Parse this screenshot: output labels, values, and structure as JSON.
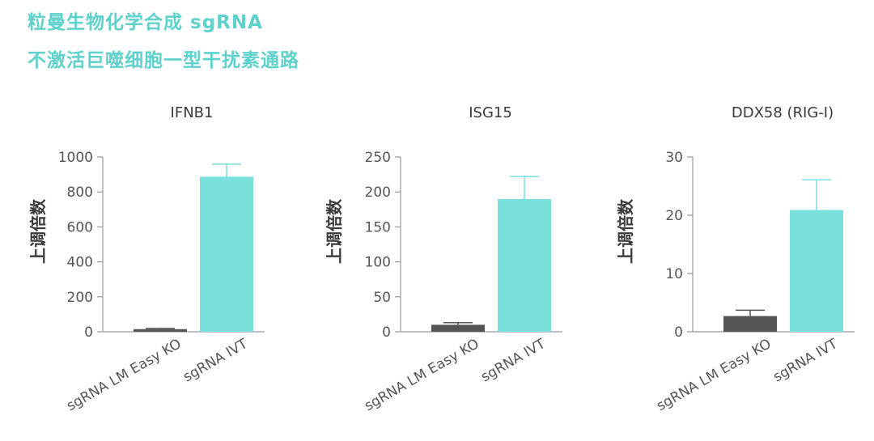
{
  "header": {
    "line1": "粒曼生物化学合成 sgRNA",
    "line2": "不激活巨噬细胞一型干扰素通路"
  },
  "colors": {
    "accent": "#5fd1cc",
    "bar_dark": "#555555",
    "bar_light": "#79e0dc"
  },
  "chart_data": [
    {
      "type": "bar",
      "title": "IFNB1",
      "ylabel": "上调倍数",
      "categories": [
        "sgRNA LM Easy KO",
        "sgRNA IVT"
      ],
      "values": [
        15,
        887
      ],
      "errors": [
        4,
        72
      ],
      "ylim": [
        0,
        1000
      ],
      "yticks": [
        "0",
        "200",
        "400",
        "600",
        "800",
        "1000"
      ]
    },
    {
      "type": "bar",
      "title": "ISG15",
      "ylabel": "上调倍数",
      "categories": [
        "sgRNA LM Easy KO",
        "sgRNA IVT"
      ],
      "values": [
        10,
        190
      ],
      "errors": [
        3,
        32
      ],
      "ylim": [
        0,
        250
      ],
      "yticks": [
        "0",
        "50",
        "100",
        "150",
        "200",
        "250"
      ]
    },
    {
      "type": "bar",
      "title": "DDX58 (RIG-I)",
      "ylabel": "上调倍数",
      "categories": [
        "sgRNA LM Easy KO",
        "sgRNA IVT"
      ],
      "values": [
        2.7,
        20.9
      ],
      "errors": [
        1.0,
        5.2
      ],
      "ylim": [
        0,
        30
      ],
      "yticks": [
        "0",
        "10",
        "20",
        "30"
      ]
    }
  ]
}
